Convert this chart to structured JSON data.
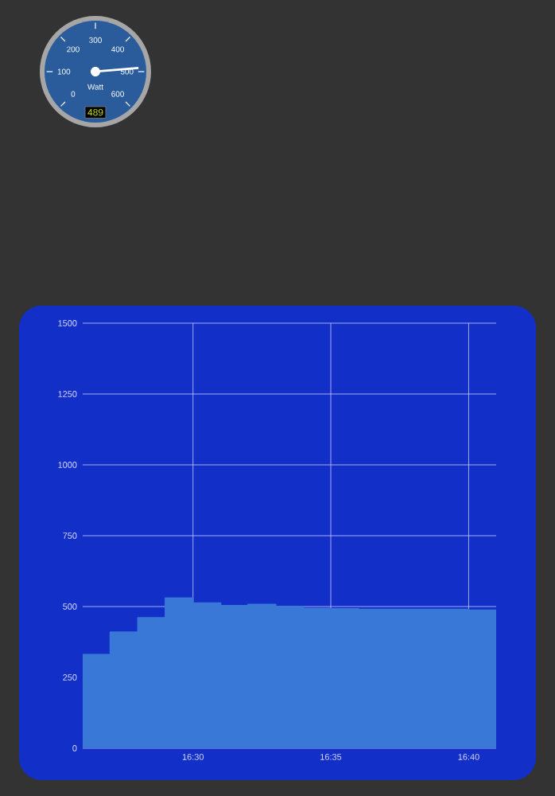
{
  "chart_data": [
    {
      "type": "other",
      "xlabel": "Watt",
      "values": [
        489
      ],
      "annotations": [
        "0",
        "100",
        "200",
        "300",
        "400",
        "500",
        "600"
      ],
      "data_labels": true
    },
    {
      "type": "area",
      "x": [
        16.4333,
        16.45,
        16.4667,
        16.4833,
        16.5,
        16.5167,
        16.5333,
        16.55,
        16.5667,
        16.5833,
        16.6,
        16.6167,
        16.6333,
        16.65,
        16.6667,
        16.6833
      ],
      "values": [
        330,
        410,
        460,
        530,
        512,
        503,
        507,
        500,
        493,
        492,
        490,
        490,
        490,
        490,
        487,
        487
      ],
      "color": "#3a78d8",
      "xlim": [
        16.4333,
        16.6833
      ],
      "xticks": [
        {
          "value": 16.5,
          "label": "16:30"
        },
        {
          "value": 16.5833,
          "label": "16:35"
        },
        {
          "value": 16.6667,
          "label": "16:40"
        }
      ],
      "ylim": [
        0,
        1500
      ],
      "yticks": [
        0,
        250,
        500,
        750,
        1000,
        1250,
        1500
      ],
      "grid": true
    }
  ]
}
